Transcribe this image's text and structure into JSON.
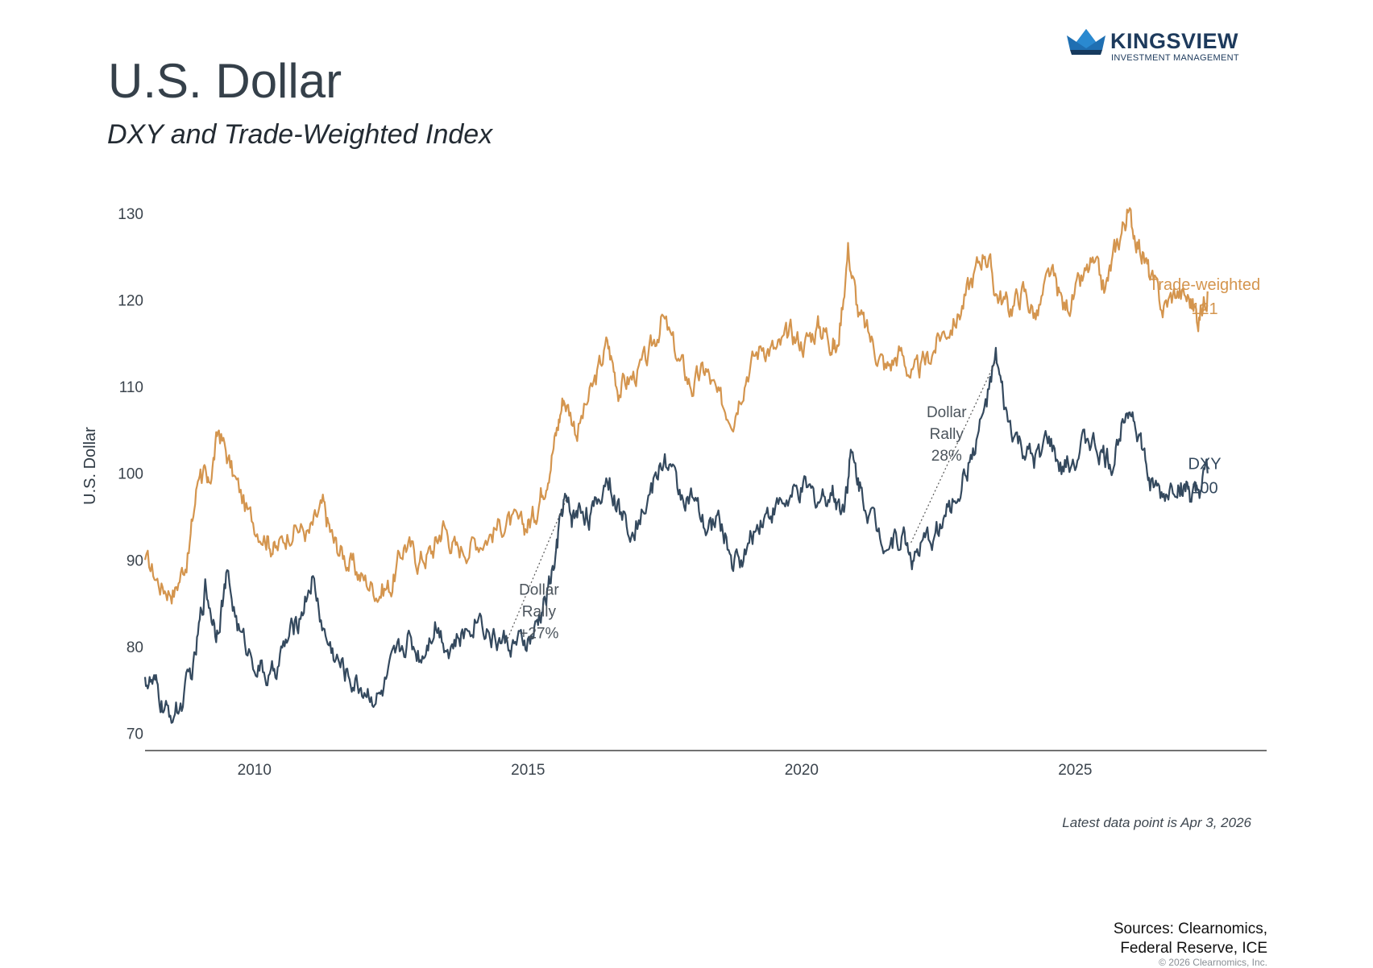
{
  "header": {
    "title": "U.S. Dollar",
    "subtitle": "DXY and Trade-Weighted Index"
  },
  "logo": {
    "name": "KINGSVIEW",
    "tagline": "INVESTMENT MANAGEMENT"
  },
  "footer": {
    "latest_note": "Latest data point is Apr 3, 2026",
    "sources_line1": "Sources: Clearnomics,",
    "sources_line2": "Federal Reserve, ICE",
    "copyright": "© 2026 Clearnomics, Inc."
  },
  "colors": {
    "dxy": "#34495e",
    "trade_weighted": "#d4954e",
    "axis": "#444444",
    "annotation": "#555555"
  },
  "chart_data": {
    "type": "line",
    "title": "U.S. Dollar",
    "subtitle": "DXY and Trade-Weighted Index",
    "xlabel": "",
    "ylabel": "U.S. Dollar",
    "xlim": [
      2008.0,
      2028.5
    ],
    "ylim": [
      68,
      130
    ],
    "yticks": [
      70,
      80,
      90,
      100,
      110,
      120,
      130
    ],
    "xticks": [
      2010,
      2015,
      2020,
      2025
    ],
    "grid": false,
    "series": [
      {
        "name": "Trade-weighted",
        "end_label": "Trade-weighted",
        "end_value_label": "121",
        "color": "#d4954e",
        "points": [
          [
            2008.0,
            90
          ],
          [
            2008.3,
            87
          ],
          [
            2008.55,
            86.5
          ],
          [
            2008.8,
            91
          ],
          [
            2009.0,
            101
          ],
          [
            2009.15,
            98
          ],
          [
            2009.35,
            105
          ],
          [
            2009.6,
            100
          ],
          [
            2009.9,
            95
          ],
          [
            2010.2,
            93
          ],
          [
            2010.4,
            91
          ],
          [
            2010.7,
            94
          ],
          [
            2011.0,
            93
          ],
          [
            2011.25,
            96
          ],
          [
            2011.45,
            92
          ],
          [
            2011.7,
            90
          ],
          [
            2011.95,
            88
          ],
          [
            2012.25,
            86.5
          ],
          [
            2012.5,
            87
          ],
          [
            2012.75,
            92
          ],
          [
            2013.0,
            90
          ],
          [
            2013.25,
            91
          ],
          [
            2013.45,
            94
          ],
          [
            2013.7,
            91
          ],
          [
            2014.0,
            92
          ],
          [
            2014.3,
            93
          ],
          [
            2014.6,
            94.5
          ],
          [
            2014.9,
            93.5
          ],
          [
            2015.1,
            95
          ],
          [
            2015.3,
            99
          ],
          [
            2015.5,
            104
          ],
          [
            2015.65,
            109
          ],
          [
            2015.9,
            105
          ],
          [
            2016.2,
            110
          ],
          [
            2016.45,
            115
          ],
          [
            2016.65,
            110
          ],
          [
            2016.9,
            111
          ],
          [
            2017.2,
            113
          ],
          [
            2017.45,
            118
          ],
          [
            2017.75,
            113
          ],
          [
            2018.0,
            110
          ],
          [
            2018.25,
            112
          ],
          [
            2018.5,
            108
          ],
          [
            2018.75,
            107
          ],
          [
            2019.0,
            112
          ],
          [
            2019.3,
            115
          ],
          [
            2019.55,
            114
          ],
          [
            2019.8,
            116
          ],
          [
            2020.05,
            115
          ],
          [
            2020.3,
            117
          ],
          [
            2020.5,
            116
          ],
          [
            2020.65,
            114
          ],
          [
            2020.85,
            126
          ],
          [
            2021.05,
            118
          ],
          [
            2021.3,
            115
          ],
          [
            2021.55,
            112
          ],
          [
            2021.8,
            114
          ],
          [
            2022.05,
            111
          ],
          [
            2022.3,
            113
          ],
          [
            2022.55,
            116
          ],
          [
            2022.85,
            118
          ],
          [
            2023.1,
            122
          ],
          [
            2023.35,
            126
          ],
          [
            2023.55,
            121
          ],
          [
            2023.8,
            119
          ],
          [
            2024.05,
            121
          ],
          [
            2024.3,
            118
          ],
          [
            2024.55,
            123
          ],
          [
            2024.8,
            119
          ],
          [
            2025.05,
            121
          ],
          [
            2025.3,
            124
          ],
          [
            2025.55,
            121
          ],
          [
            2025.75,
            126
          ],
          [
            2025.95,
            130
          ],
          [
            2026.15,
            127
          ],
          [
            2026.35,
            123
          ],
          [
            2026.6,
            119
          ],
          [
            2026.85,
            121
          ],
          [
            2027.1,
            120
          ],
          [
            2027.25,
            118
          ],
          [
            2027.42,
            121
          ]
        ]
      },
      {
        "name": "DXY",
        "end_label": "DXY",
        "end_value_label": "100",
        "color": "#34495e",
        "points": [
          [
            2008.0,
            76.5
          ],
          [
            2008.2,
            75
          ],
          [
            2008.4,
            72
          ],
          [
            2008.65,
            73
          ],
          [
            2008.9,
            78
          ],
          [
            2009.1,
            87
          ],
          [
            2009.3,
            82
          ],
          [
            2009.5,
            88
          ],
          [
            2009.75,
            81
          ],
          [
            2010.05,
            78
          ],
          [
            2010.3,
            76
          ],
          [
            2010.55,
            80
          ],
          [
            2010.8,
            83
          ],
          [
            2011.05,
            88
          ],
          [
            2011.3,
            81
          ],
          [
            2011.55,
            78
          ],
          [
            2011.8,
            76
          ],
          [
            2012.05,
            75
          ],
          [
            2012.3,
            74
          ],
          [
            2012.55,
            78
          ],
          [
            2012.8,
            81
          ],
          [
            2013.05,
            79
          ],
          [
            2013.3,
            83
          ],
          [
            2013.55,
            80
          ],
          [
            2013.8,
            81
          ],
          [
            2014.1,
            84
          ],
          [
            2014.35,
            81
          ],
          [
            2014.6,
            80.5
          ],
          [
            2014.85,
            80
          ],
          [
            2015.1,
            81
          ],
          [
            2015.3,
            85
          ],
          [
            2015.5,
            90
          ],
          [
            2015.65,
            97
          ],
          [
            2015.8,
            95
          ],
          [
            2016.0,
            96
          ],
          [
            2016.2,
            95
          ],
          [
            2016.45,
            100
          ],
          [
            2016.7,
            95
          ],
          [
            2016.95,
            94
          ],
          [
            2017.25,
            98
          ],
          [
            2017.5,
            102
          ],
          [
            2017.75,
            98
          ],
          [
            2018.0,
            97
          ],
          [
            2018.25,
            93
          ],
          [
            2018.5,
            95
          ],
          [
            2018.75,
            89.5
          ],
          [
            2019.0,
            91
          ],
          [
            2019.25,
            95
          ],
          [
            2019.5,
            96
          ],
          [
            2019.8,
            97
          ],
          [
            2020.05,
            98
          ],
          [
            2020.3,
            97
          ],
          [
            2020.55,
            98
          ],
          [
            2020.75,
            96
          ],
          [
            2020.9,
            102
          ],
          [
            2021.1,
            98
          ],
          [
            2021.35,
            94
          ],
          [
            2021.6,
            92
          ],
          [
            2021.85,
            93
          ],
          [
            2022.05,
            90
          ],
          [
            2022.3,
            92
          ],
          [
            2022.55,
            94
          ],
          [
            2022.8,
            97
          ],
          [
            2023.05,
            101
          ],
          [
            2023.3,
            106
          ],
          [
            2023.55,
            113
          ],
          [
            2023.75,
            106
          ],
          [
            2024.0,
            103
          ],
          [
            2024.25,
            101
          ],
          [
            2024.5,
            104
          ],
          [
            2024.75,
            100
          ],
          [
            2025.0,
            102
          ],
          [
            2025.25,
            104
          ],
          [
            2025.5,
            102
          ],
          [
            2025.7,
            101
          ],
          [
            2025.95,
            109
          ],
          [
            2026.15,
            105
          ],
          [
            2026.35,
            99
          ],
          [
            2026.6,
            97
          ],
          [
            2026.85,
            99
          ],
          [
            2027.05,
            98
          ],
          [
            2027.2,
            96.5
          ],
          [
            2027.42,
            100
          ]
        ]
      }
    ],
    "annotations": [
      {
        "lines": [
          "Dollar",
          "Rally",
          "+27%"
        ],
        "from": [
          2014.6,
          80.5
        ],
        "to": [
          2015.7,
          97
        ]
      },
      {
        "lines": [
          "Dollar",
          "Rally",
          "28%"
        ],
        "from": [
          2022.0,
          92
        ],
        "to": [
          2023.55,
          113
        ]
      }
    ]
  }
}
